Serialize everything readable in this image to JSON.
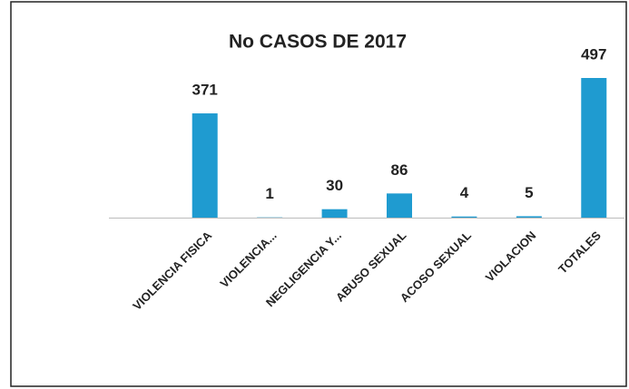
{
  "chart_data": {
    "type": "bar",
    "title": "No CASOS DE 2017",
    "categories": [
      "VIOLENCIA FISICA",
      "VIOLENCIA...",
      "NEGLIGENCIA Y...",
      "ABUSO SEXUAL",
      "ACOSO SEXUAL",
      "VIOLACION",
      "TOTALES"
    ],
    "values": [
      371,
      1,
      30,
      86,
      4,
      5,
      497
    ],
    "color": "#1f9bd0"
  }
}
